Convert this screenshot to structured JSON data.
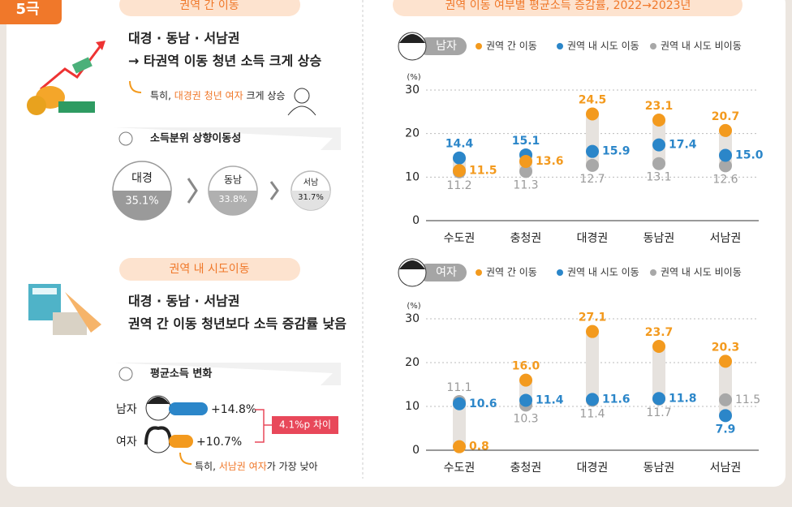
{
  "tag": "5극",
  "left": {
    "section1": {
      "pill": "권역 간 이동",
      "headline": [
        "대경 · 동남 · 서남권",
        "→ 타권역 이동 청년 소득 크게 상승"
      ],
      "note": [
        "특히, ",
        "대경권 청년 여자",
        " 크게 상승"
      ],
      "box_label": "소득분위 상향이동성",
      "circles": [
        {
          "name": "대경",
          "value": "35.1%"
        },
        {
          "name": "동남",
          "value": "33.8%"
        },
        {
          "name": "서남",
          "value": "31.7%"
        }
      ]
    },
    "section2": {
      "pill": "권역 내 시도이동",
      "headline": [
        "대경 · 동남 · 서남권",
        "권역 간 이동 청년보다 소득 증감률 낮음"
      ],
      "box_label": "평균소득 변화",
      "rows": [
        {
          "name": "남자",
          "value": "+14.8%"
        },
        {
          "name": "여자",
          "value": "+10.7%"
        }
      ],
      "difference": "4.1%p 차이",
      "note": [
        "특히, ",
        "서남권 여자",
        "가 가장 낮아"
      ]
    }
  },
  "right_title": "권역 이동 여부별 평균소득 증감률, 2022→2023년",
  "chart_data": [
    {
      "type": "dot-range",
      "label": "남자",
      "y_label": "(%)",
      "categories": [
        "수도권",
        "충청권",
        "대경권",
        "동남권",
        "서남권"
      ],
      "ylim": [
        0,
        30
      ],
      "yticks": [
        0,
        10,
        20,
        30
      ],
      "series": [
        {
          "name": "권역 간 이동",
          "color": "#f39a1e",
          "values": [
            11.5,
            13.6,
            24.5,
            23.1,
            20.7
          ],
          "value_labels": [
            "11.5",
            "13.6",
            "24.5",
            "23.1",
            "20.7"
          ]
        },
        {
          "name": "권역 내 시도 이동",
          "color": "#2b86c9",
          "values": [
            14.4,
            15.1,
            15.9,
            17.4,
            15.0
          ],
          "value_labels": [
            "14.4",
            "15.1",
            "15.9",
            "17.4",
            "15.0"
          ]
        },
        {
          "name": "권역 내 시도 비이동",
          "color": "#a8a8a8",
          "values": [
            11.2,
            11.3,
            12.7,
            13.1,
            12.6
          ],
          "value_labels": [
            "11.2",
            "11.3",
            "12.7",
            "13.1",
            "12.6"
          ]
        }
      ]
    },
    {
      "type": "dot-range",
      "label": "여자",
      "y_label": "(%)",
      "categories": [
        "수도권",
        "충청권",
        "대경권",
        "동남권",
        "서남권"
      ],
      "ylim": [
        0,
        30
      ],
      "yticks": [
        0,
        10,
        20,
        30
      ],
      "series": [
        {
          "name": "권역 간 이동",
          "color": "#f39a1e",
          "values": [
            0.8,
            16.0,
            27.1,
            23.7,
            20.3
          ],
          "value_labels": [
            "0.8",
            "16.0",
            "27.1",
            "23.7",
            "20.3"
          ]
        },
        {
          "name": "권역 내 시도 이동",
          "color": "#2b86c9",
          "values": [
            10.6,
            11.4,
            11.6,
            11.8,
            7.9
          ],
          "value_labels": [
            "10.6",
            "11.4",
            "11.6",
            "11.8",
            "7.9"
          ]
        },
        {
          "name": "권역 내 시도 비이동",
          "color": "#a8a8a8",
          "values": [
            11.1,
            10.3,
            11.4,
            11.7,
            11.5
          ],
          "value_labels": [
            "11.1",
            "10.3",
            "11.4",
            "11.7",
            "11.5"
          ]
        }
      ]
    }
  ]
}
